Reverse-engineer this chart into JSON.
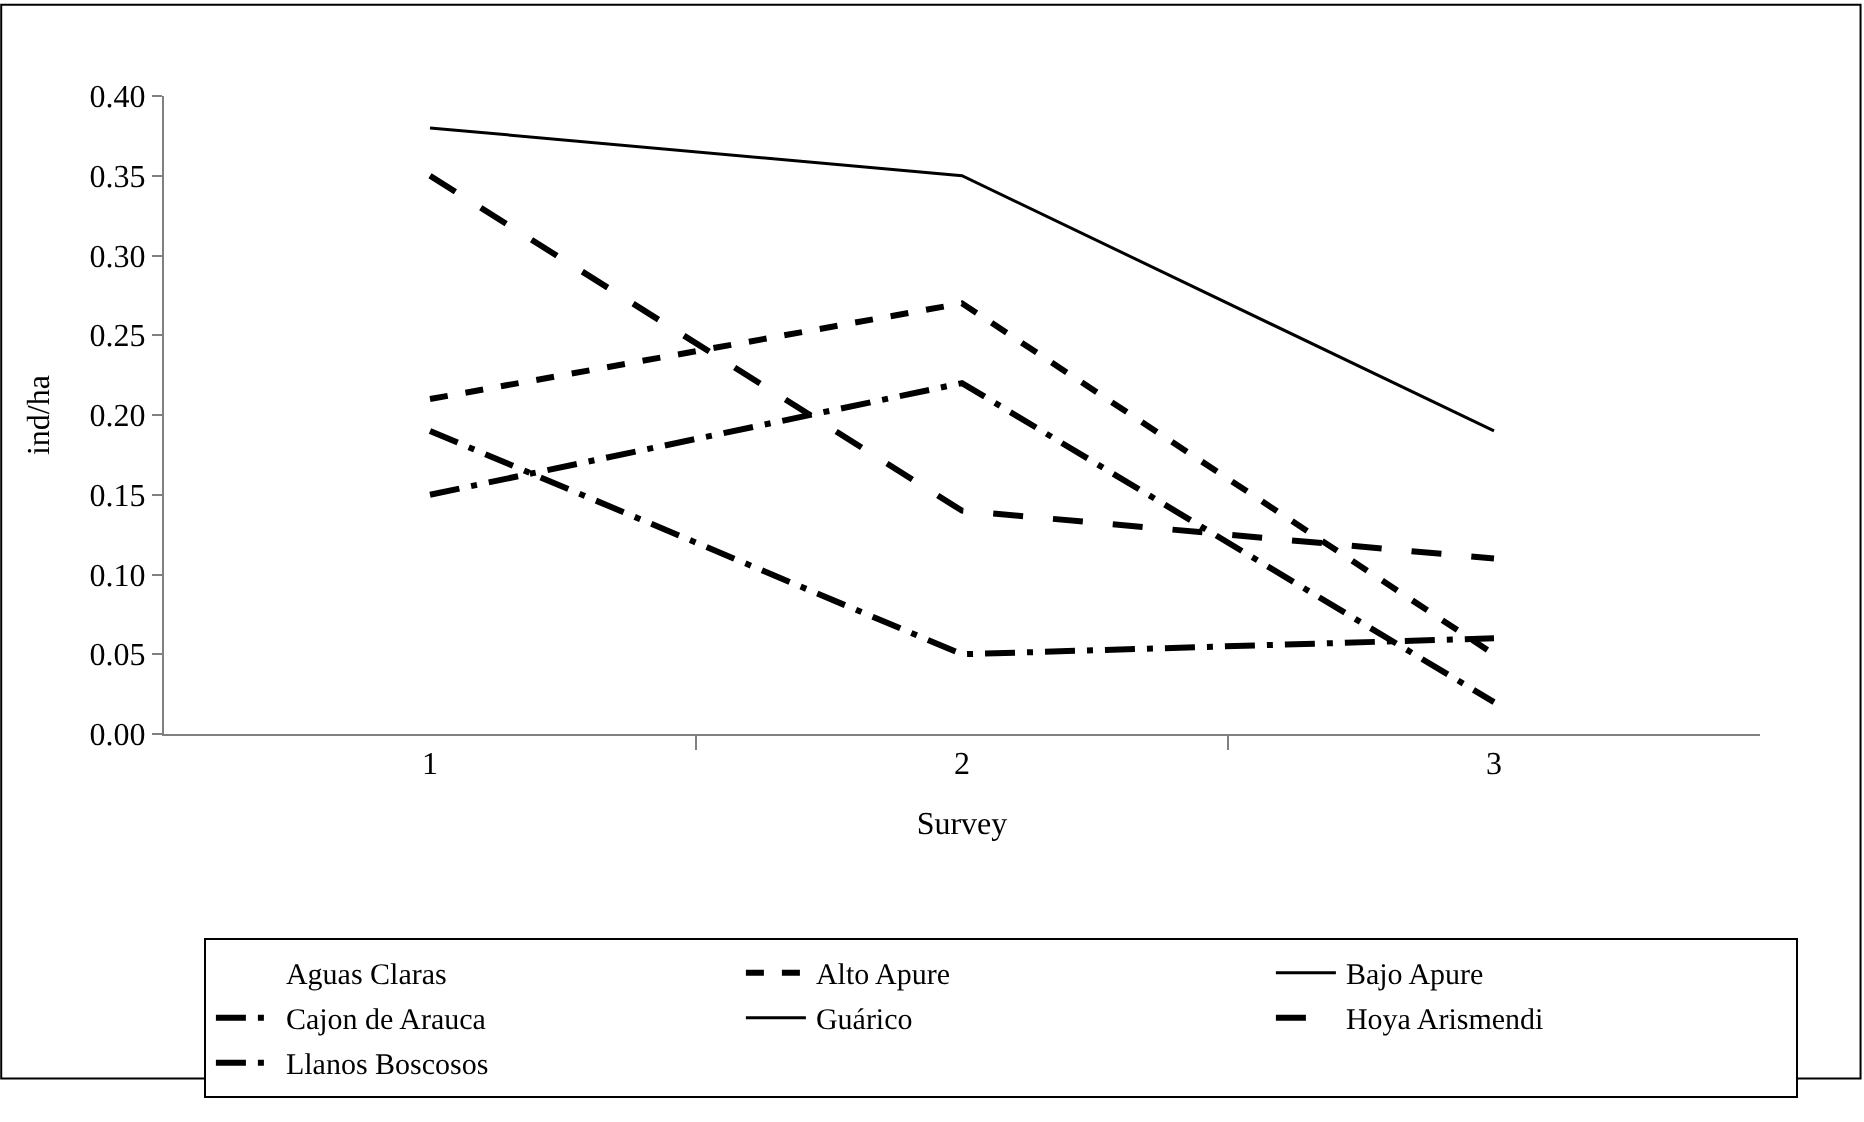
{
  "chart_data": {
    "type": "line",
    "xlabel": "Survey",
    "ylabel": "ind/ha",
    "categories": [
      "1",
      "2",
      "3"
    ],
    "series": [
      {
        "name": "Aguas Claras",
        "values": [
          null,
          null,
          null
        ],
        "line_style": "solid"
      },
      {
        "name": "Alto Apure",
        "color": "#000000",
        "values": [
          0.21,
          0.27,
          0.05
        ],
        "line_style": "dotted"
      },
      {
        "name": "Bajo Apure",
        "color": "#000000",
        "values": [
          0.38,
          0.35,
          0.19
        ],
        "line_style": "solid"
      },
      {
        "name": "Cajon de Arauca",
        "color": "#000000",
        "values": [
          0.15,
          0.22,
          0.02
        ],
        "line_style": "dashdot"
      },
      {
        "name": "Guárico",
        "color": "#000000",
        "values": [
          null,
          null,
          null
        ],
        "line_style": "solid"
      },
      {
        "name": "Hoya Arismendi",
        "color": "#000000",
        "values": [
          0.35,
          0.14,
          0.11
        ],
        "line_style": "dashed"
      },
      {
        "name": "Llanos Boscosos",
        "color": "#000000",
        "values": [
          0.19,
          0.05,
          0.06
        ],
        "line_style": "dashdot"
      }
    ],
    "ylim": [
      0,
      0.4
    ],
    "yticks": [
      {
        "value": 0,
        "label": "0.00"
      },
      {
        "value": 0.05,
        "label": "0.05"
      },
      {
        "value": 0.1,
        "label": "0.10"
      },
      {
        "value": 0.15,
        "label": "0.15"
      },
      {
        "value": 0.2,
        "label": "0.20"
      },
      {
        "value": 0.25,
        "label": "0.25"
      },
      {
        "value": 0.3,
        "label": "0.30"
      },
      {
        "value": 0.35,
        "label": "0.35"
      },
      {
        "value": 0.4,
        "label": "0.40"
      }
    ],
    "legend": "bottom",
    "marker": "none"
  }
}
